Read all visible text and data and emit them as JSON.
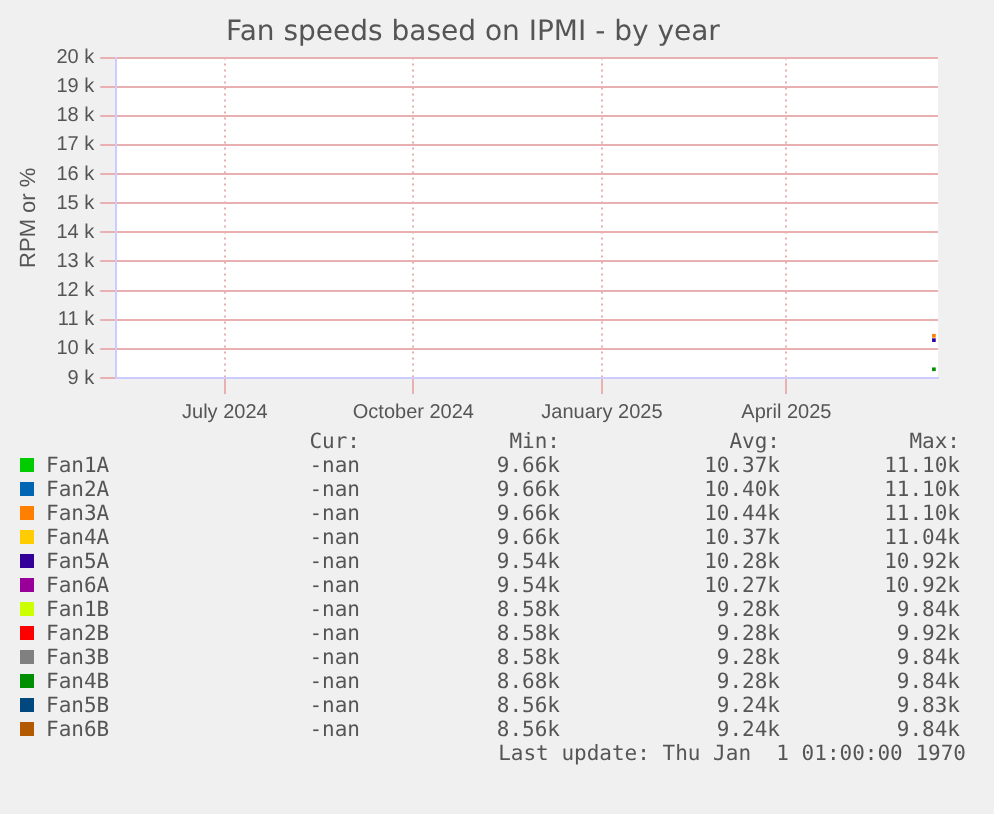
{
  "chart_data": {
    "type": "line",
    "title": "Fan speeds based on IPMI - by year",
    "ylabel": "RPM or %",
    "xlim": [
      "2024-05-09",
      "2025-06-14"
    ],
    "xticks": [
      {
        "value": "2024-07-01",
        "label": "July 2024"
      },
      {
        "value": "2024-10-01",
        "label": "October 2024"
      },
      {
        "value": "2025-01-01",
        "label": "January 2025"
      },
      {
        "value": "2025-04-01",
        "label": "April 2025"
      }
    ],
    "ylim": [
      9000,
      20000
    ],
    "yticks": [
      {
        "value": 9000,
        "label": "9 k"
      },
      {
        "value": 10000,
        "label": "10 k"
      },
      {
        "value": 11000,
        "label": "11 k"
      },
      {
        "value": 12000,
        "label": "12 k"
      },
      {
        "value": 13000,
        "label": "13 k"
      },
      {
        "value": 14000,
        "label": "14 k"
      },
      {
        "value": 15000,
        "label": "15 k"
      },
      {
        "value": 16000,
        "label": "16 k"
      },
      {
        "value": 17000,
        "label": "17 k"
      },
      {
        "value": 18000,
        "label": "18 k"
      },
      {
        "value": 19000,
        "label": "19 k"
      },
      {
        "value": 20000,
        "label": "20 k"
      }
    ],
    "x": [
      "2025-06-12"
    ],
    "grid": true,
    "legend": "bottom",
    "marker": "square",
    "series": [
      {
        "name": "Fan1A",
        "color": "#00cc00",
        "values": [
          null
        ]
      },
      {
        "name": "Fan2A",
        "color": "#0066b3",
        "values": [
          null
        ]
      },
      {
        "name": "Fan3A",
        "color": "#ff8000",
        "values": [
          10450
        ]
      },
      {
        "name": "Fan4A",
        "color": "#ffcc00",
        "values": [
          null
        ]
      },
      {
        "name": "Fan5A",
        "color": "#330099",
        "values": [
          10300
        ]
      },
      {
        "name": "Fan6A",
        "color": "#990099",
        "values": [
          null
        ]
      },
      {
        "name": "Fan1B",
        "color": "#ccff00",
        "values": [
          null
        ]
      },
      {
        "name": "Fan2B",
        "color": "#ff0000",
        "values": [
          null
        ]
      },
      {
        "name": "Fan3B",
        "color": "#808080",
        "values": [
          null
        ]
      },
      {
        "name": "Fan4B",
        "color": "#008f00",
        "values": [
          9300
        ]
      },
      {
        "name": "Fan5B",
        "color": "#00487d",
        "values": [
          null
        ]
      },
      {
        "name": "Fan6B",
        "color": "#b35a00",
        "values": [
          null
        ]
      }
    ],
    "annotations": [
      "Cur:",
      "Min:",
      "Avg:",
      "Max:",
      "-nan",
      "9.66k",
      "10.37k",
      "11.10k",
      "-nan",
      "9.66k",
      "10.40k",
      "11.10k",
      "-nan",
      "9.66k",
      "10.44k",
      "11.10k",
      "-nan",
      "9.66k",
      "10.37k",
      "11.04k",
      "-nan",
      "9.54k",
      "10.28k",
      "10.92k",
      "-nan",
      "9.54k",
      "10.27k",
      "10.92k",
      "-nan",
      "8.58k",
      "9.28k",
      "9.84k",
      "-nan",
      "8.58k",
      "9.28k",
      "9.92k",
      "-nan",
      "8.58k",
      "9.28k",
      "9.84k",
      "-nan",
      "8.68k",
      "9.28k",
      "9.84k",
      "-nan",
      "8.56k",
      "9.24k",
      "9.83k",
      "-nan",
      "8.56k",
      "9.24k",
      "9.84k",
      "Last update: Thu Jan  1 01:00:00 1970"
    ]
  }
}
